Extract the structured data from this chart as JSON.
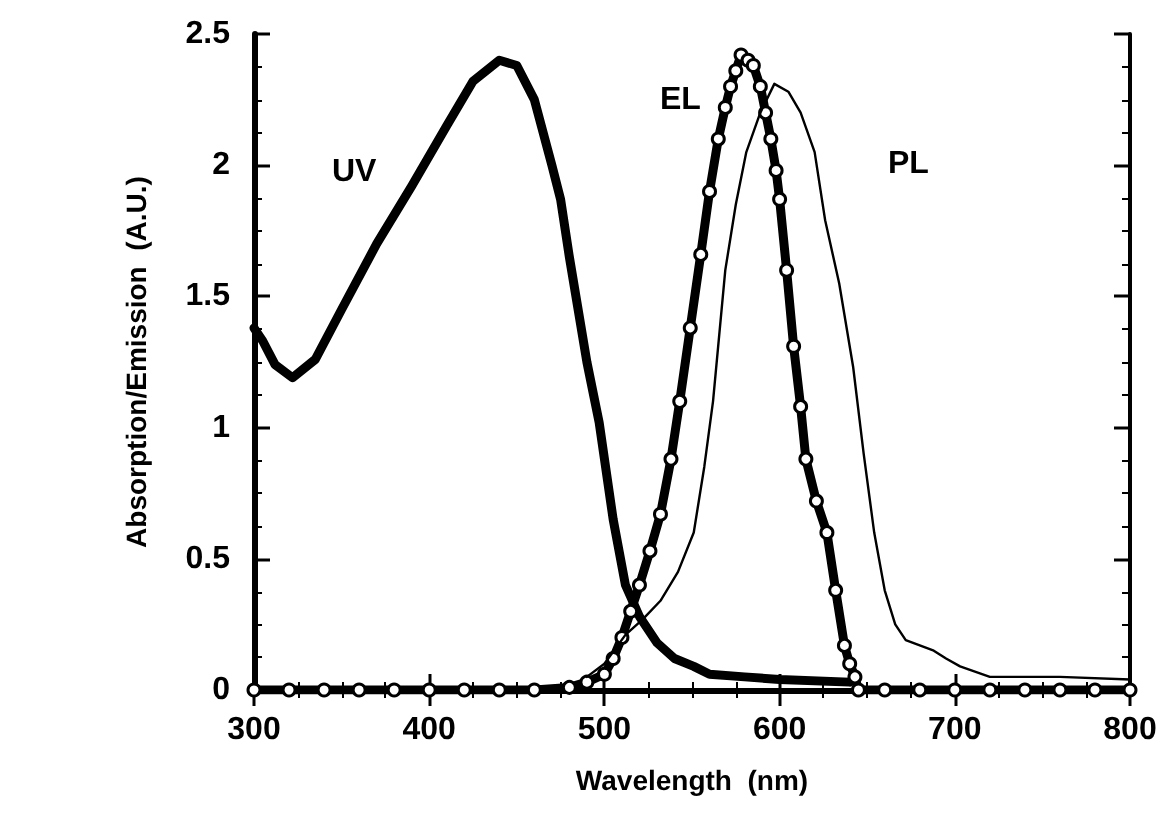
{
  "chart_data": {
    "type": "line",
    "xlabel": "Wavelength  (nm)",
    "ylabel": "Absorption/Emission  (A.U.)",
    "xlim": [
      300,
      800
    ],
    "xticks": [
      300,
      400,
      500,
      600,
      700,
      800
    ],
    "ylim": [
      0,
      2.5
    ],
    "yticks": [
      0,
      0.5,
      1,
      1.5,
      2,
      2.5
    ],
    "grid": false,
    "series": [
      {
        "name": "UV",
        "color": "#000000",
        "marker": "none",
        "x": [
          300,
          305,
          312,
          322,
          335,
          350,
          370,
          390,
          410,
          425,
          440,
          450,
          460,
          470,
          475,
          480,
          490,
          497,
          505,
          512,
          520,
          530,
          540,
          551,
          560,
          580,
          600,
          640
        ],
        "values": [
          1.38,
          1.33,
          1.24,
          1.19,
          1.26,
          1.45,
          1.7,
          1.92,
          2.15,
          2.32,
          2.4,
          2.38,
          2.25,
          2.0,
          1.87,
          1.65,
          1.25,
          1.02,
          0.65,
          0.4,
          0.28,
          0.18,
          0.12,
          0.09,
          0.06,
          0.05,
          0.04,
          0.03
        ]
      },
      {
        "name": "EL",
        "color": "#000000",
        "marker": "circle",
        "x": [
          300,
          320,
          340,
          360,
          380,
          400,
          420,
          440,
          460,
          480,
          490,
          500,
          505,
          510,
          515,
          520,
          526,
          532,
          538,
          543,
          549,
          555,
          560,
          565,
          569,
          572,
          575,
          578,
          582,
          585,
          589,
          592,
          595,
          598,
          600,
          604,
          608,
          612,
          615,
          621,
          627,
          632,
          637,
          640,
          643,
          645,
          660,
          680,
          700,
          720,
          740,
          760,
          780,
          800
        ],
        "values": [
          0,
          0,
          0,
          0,
          0,
          0,
          0,
          0,
          0,
          0.01,
          0.03,
          0.06,
          0.12,
          0.2,
          0.3,
          0.4,
          0.53,
          0.67,
          0.88,
          1.1,
          1.38,
          1.66,
          1.9,
          2.1,
          2.22,
          2.3,
          2.36,
          2.42,
          2.4,
          2.38,
          2.3,
          2.2,
          2.1,
          1.98,
          1.87,
          1.6,
          1.31,
          1.08,
          0.88,
          0.72,
          0.6,
          0.38,
          0.17,
          0.1,
          0.05,
          0,
          0,
          0,
          0,
          0,
          0,
          0,
          0,
          0
        ]
      },
      {
        "name": "PL",
        "color": "#000000",
        "marker": "none",
        "x": [
          490,
          500,
          512,
          522,
          532,
          542,
          551,
          557,
          562,
          569,
          575,
          581,
          589,
          597,
          605,
          612,
          620,
          626,
          634,
          642,
          648,
          654,
          660,
          666,
          672,
          680,
          688,
          695,
          703,
          720,
          760,
          800
        ],
        "values": [
          0.05,
          0.1,
          0.21,
          0.27,
          0.34,
          0.45,
          0.6,
          0.85,
          1.1,
          1.6,
          1.85,
          2.05,
          2.2,
          2.31,
          2.28,
          2.2,
          2.05,
          1.79,
          1.55,
          1.23,
          0.9,
          0.6,
          0.38,
          0.25,
          0.19,
          0.17,
          0.15,
          0.12,
          0.09,
          0.05,
          0.05,
          0.04
        ]
      }
    ]
  }
}
